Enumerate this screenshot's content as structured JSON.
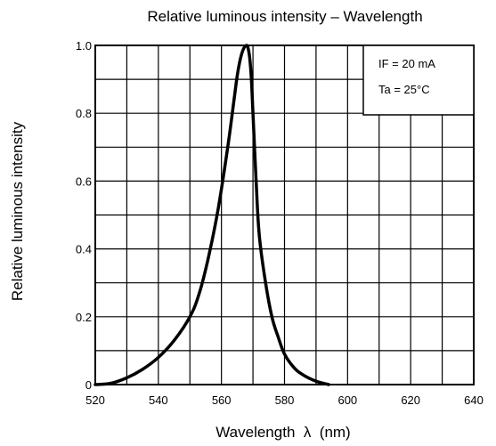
{
  "chart_data": {
    "type": "line",
    "title": "Relative luminous intensity – Wavelength",
    "xlabel": "Wavelength  λ  (nm)",
    "ylabel": "Relative luminous intensity",
    "xlim": [
      520,
      640
    ],
    "ylim": [
      0,
      1.0
    ],
    "x_ticks": [
      520,
      540,
      560,
      580,
      600,
      620,
      640
    ],
    "x_tick_labels": [
      "520",
      "540",
      "560",
      "580",
      "600",
      "620",
      "640"
    ],
    "y_ticks": [
      0,
      0.2,
      0.4,
      0.6,
      0.8,
      1.0
    ],
    "y_tick_labels": [
      "0",
      "0.2",
      "0.4",
      "0.6",
      "0.8",
      "1.0"
    ],
    "grid": true,
    "x_grid_step": 10,
    "y_grid_step": 0.1,
    "conditions": [
      "IF = 20 mA",
      "Ta = 25°C"
    ],
    "conditions_placement": "top-right",
    "series": [
      {
        "color": "#000000",
        "x": [
          520,
          525,
          530,
          535,
          540,
          545,
          550,
          553,
          556,
          559,
          562,
          564,
          565,
          566,
          567,
          568,
          568.5,
          569,
          569.5,
          570,
          571,
          572,
          574,
          576,
          578,
          580,
          583,
          586,
          590,
          594
        ],
        "y": [
          0.0,
          0.004,
          0.02,
          0.045,
          0.08,
          0.13,
          0.2,
          0.27,
          0.38,
          0.52,
          0.7,
          0.84,
          0.91,
          0.96,
          0.99,
          1.0,
          0.99,
          0.96,
          0.9,
          0.8,
          0.6,
          0.44,
          0.3,
          0.2,
          0.14,
          0.09,
          0.05,
          0.028,
          0.01,
          0.0
        ]
      }
    ]
  }
}
